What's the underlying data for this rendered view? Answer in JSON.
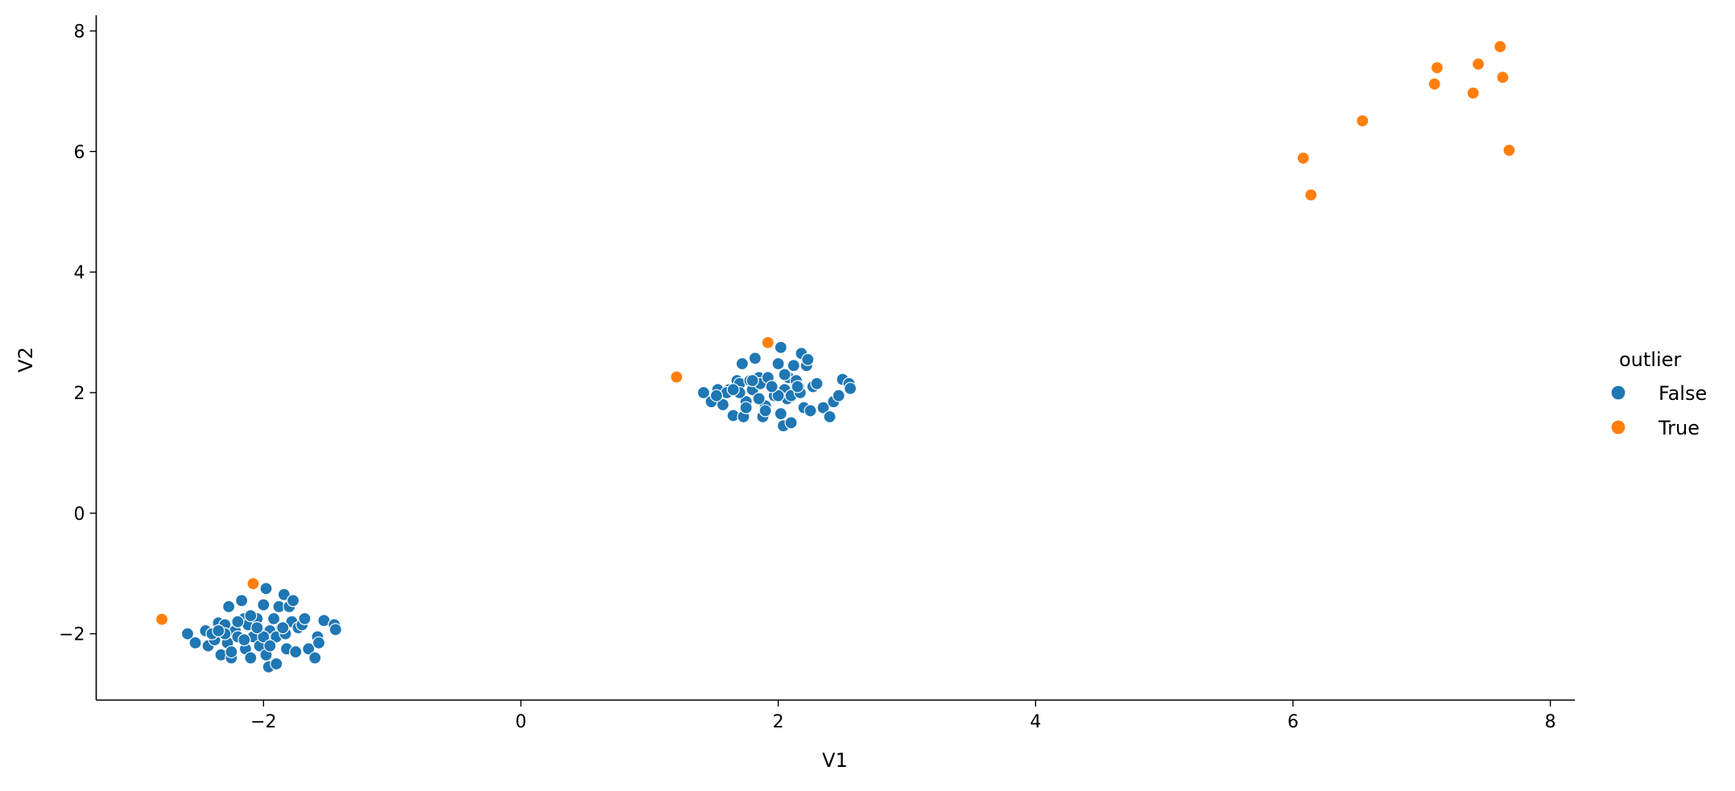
{
  "chart_data": {
    "type": "scatter",
    "title": "",
    "xlabel": "V1",
    "ylabel": "V2",
    "xlim": [
      -3.3,
      8.19
    ],
    "ylim": [
      -3.1,
      8.26
    ],
    "xticks": [
      -2,
      0,
      2,
      4,
      6,
      8
    ],
    "yticks": [
      -2,
      0,
      2,
      4,
      6,
      8
    ],
    "xtick_labels": [
      "−2",
      "0",
      "2",
      "4",
      "6",
      "8"
    ],
    "ytick_labels": [
      "−2",
      "0",
      "2",
      "4",
      "6",
      "8"
    ],
    "grid": false,
    "legend": {
      "title": "outlier",
      "placement": "right"
    },
    "series": [
      {
        "name": "False",
        "color": "#1f77b4",
        "points": [
          [
            -2.59,
            -2.0
          ],
          [
            -2.53,
            -2.15
          ],
          [
            -2.45,
            -1.95
          ],
          [
            -2.43,
            -2.2
          ],
          [
            -2.38,
            -2.1
          ],
          [
            -2.35,
            -1.82
          ],
          [
            -2.33,
            -2.35
          ],
          [
            -2.3,
            -1.85
          ],
          [
            -2.28,
            -2.15
          ],
          [
            -2.27,
            -1.55
          ],
          [
            -2.25,
            -2.4
          ],
          [
            -2.22,
            -1.95
          ],
          [
            -2.2,
            -2.05
          ],
          [
            -2.17,
            -1.45
          ],
          [
            -2.15,
            -1.75
          ],
          [
            -2.14,
            -2.25
          ],
          [
            -2.12,
            -1.85
          ],
          [
            -2.1,
            -2.4
          ],
          [
            -2.08,
            -2.05
          ],
          [
            -2.05,
            -1.75
          ],
          [
            -2.03,
            -2.2
          ],
          [
            -2.0,
            -1.52
          ],
          [
            -1.98,
            -1.25
          ],
          [
            -1.98,
            -2.35
          ],
          [
            -1.96,
            -2.55
          ],
          [
            -1.95,
            -1.95
          ],
          [
            -1.93,
            -2.1
          ],
          [
            -1.92,
            -1.75
          ],
          [
            -1.9,
            -2.5
          ],
          [
            -1.88,
            -1.55
          ],
          [
            -1.86,
            -1.9
          ],
          [
            -1.84,
            -1.35
          ],
          [
            -1.82,
            -2.25
          ],
          [
            -1.8,
            -1.55
          ],
          [
            -1.78,
            -1.8
          ],
          [
            -1.77,
            -1.45
          ],
          [
            -1.75,
            -2.3
          ],
          [
            -1.73,
            -1.9
          ],
          [
            -1.7,
            -1.85
          ],
          [
            -1.68,
            -1.75
          ],
          [
            -1.65,
            -2.25
          ],
          [
            -1.6,
            -2.4
          ],
          [
            -1.58,
            -2.05
          ],
          [
            -1.57,
            -2.15
          ],
          [
            -1.53,
            -1.78
          ],
          [
            -1.45,
            -1.85
          ],
          [
            -1.44,
            -1.93
          ],
          [
            -2.4,
            -2.0
          ],
          [
            -2.3,
            -2.0
          ],
          [
            -2.15,
            -2.1
          ],
          [
            -2.0,
            -2.05
          ],
          [
            -2.05,
            -1.9
          ],
          [
            -1.9,
            -2.05
          ],
          [
            -2.2,
            -1.8
          ],
          [
            -1.83,
            -2.0
          ],
          [
            -2.1,
            -1.7
          ],
          [
            -1.95,
            -2.2
          ],
          [
            -2.25,
            -2.3
          ],
          [
            -2.35,
            -1.95
          ],
          [
            -1.85,
            -1.9
          ],
          [
            1.42,
            2.0
          ],
          [
            1.48,
            1.85
          ],
          [
            1.53,
            2.05
          ],
          [
            1.57,
            1.8
          ],
          [
            1.62,
            2.05
          ],
          [
            1.65,
            1.62
          ],
          [
            1.68,
            2.2
          ],
          [
            1.7,
            2.15
          ],
          [
            1.72,
            2.48
          ],
          [
            1.73,
            1.6
          ],
          [
            1.75,
            1.85
          ],
          [
            1.78,
            2.2
          ],
          [
            1.8,
            2.05
          ],
          [
            1.82,
            2.57
          ],
          [
            1.85,
            2.25
          ],
          [
            1.86,
            2.15
          ],
          [
            1.88,
            1.6
          ],
          [
            1.9,
            1.78
          ],
          [
            1.92,
            2.25
          ],
          [
            1.95,
            2.1
          ],
          [
            1.97,
            1.95
          ],
          [
            2.0,
            2.48
          ],
          [
            2.02,
            2.75
          ],
          [
            2.02,
            1.65
          ],
          [
            2.04,
            1.45
          ],
          [
            2.05,
            2.05
          ],
          [
            2.07,
            1.9
          ],
          [
            2.08,
            2.25
          ],
          [
            2.1,
            1.5
          ],
          [
            2.12,
            2.45
          ],
          [
            2.14,
            2.2
          ],
          [
            2.16,
            2.1
          ],
          [
            2.18,
            2.65
          ],
          [
            2.2,
            1.75
          ],
          [
            2.22,
            2.45
          ],
          [
            2.23,
            2.55
          ],
          [
            2.25,
            1.7
          ],
          [
            2.27,
            2.1
          ],
          [
            2.3,
            2.15
          ],
          [
            2.35,
            1.75
          ],
          [
            2.4,
            1.6
          ],
          [
            2.43,
            1.85
          ],
          [
            2.47,
            1.95
          ],
          [
            2.5,
            2.22
          ],
          [
            2.55,
            2.15
          ],
          [
            2.56,
            2.07
          ],
          [
            1.6,
            2.0
          ],
          [
            1.7,
            2.0
          ],
          [
            1.85,
            1.9
          ],
          [
            2.0,
            1.95
          ],
          [
            1.95,
            2.1
          ],
          [
            2.1,
            1.95
          ],
          [
            1.8,
            2.2
          ],
          [
            2.17,
            2.0
          ],
          [
            1.9,
            1.7
          ],
          [
            2.05,
            2.3
          ],
          [
            1.75,
            1.75
          ],
          [
            1.65,
            2.05
          ],
          [
            2.15,
            2.1
          ],
          [
            1.52,
            1.95
          ]
        ]
      },
      {
        "name": "True",
        "color": "#ff7f0e",
        "points": [
          [
            -2.79,
            -1.76
          ],
          [
            -2.08,
            -1.17
          ],
          [
            1.21,
            2.26
          ],
          [
            1.92,
            2.83
          ],
          [
            6.08,
            5.89
          ],
          [
            6.14,
            5.28
          ],
          [
            6.54,
            6.51
          ],
          [
            7.1,
            7.12
          ],
          [
            7.12,
            7.39
          ],
          [
            7.44,
            7.45
          ],
          [
            7.4,
            6.97
          ],
          [
            7.61,
            7.74
          ],
          [
            7.63,
            7.23
          ],
          [
            7.68,
            6.02
          ]
        ]
      }
    ]
  }
}
